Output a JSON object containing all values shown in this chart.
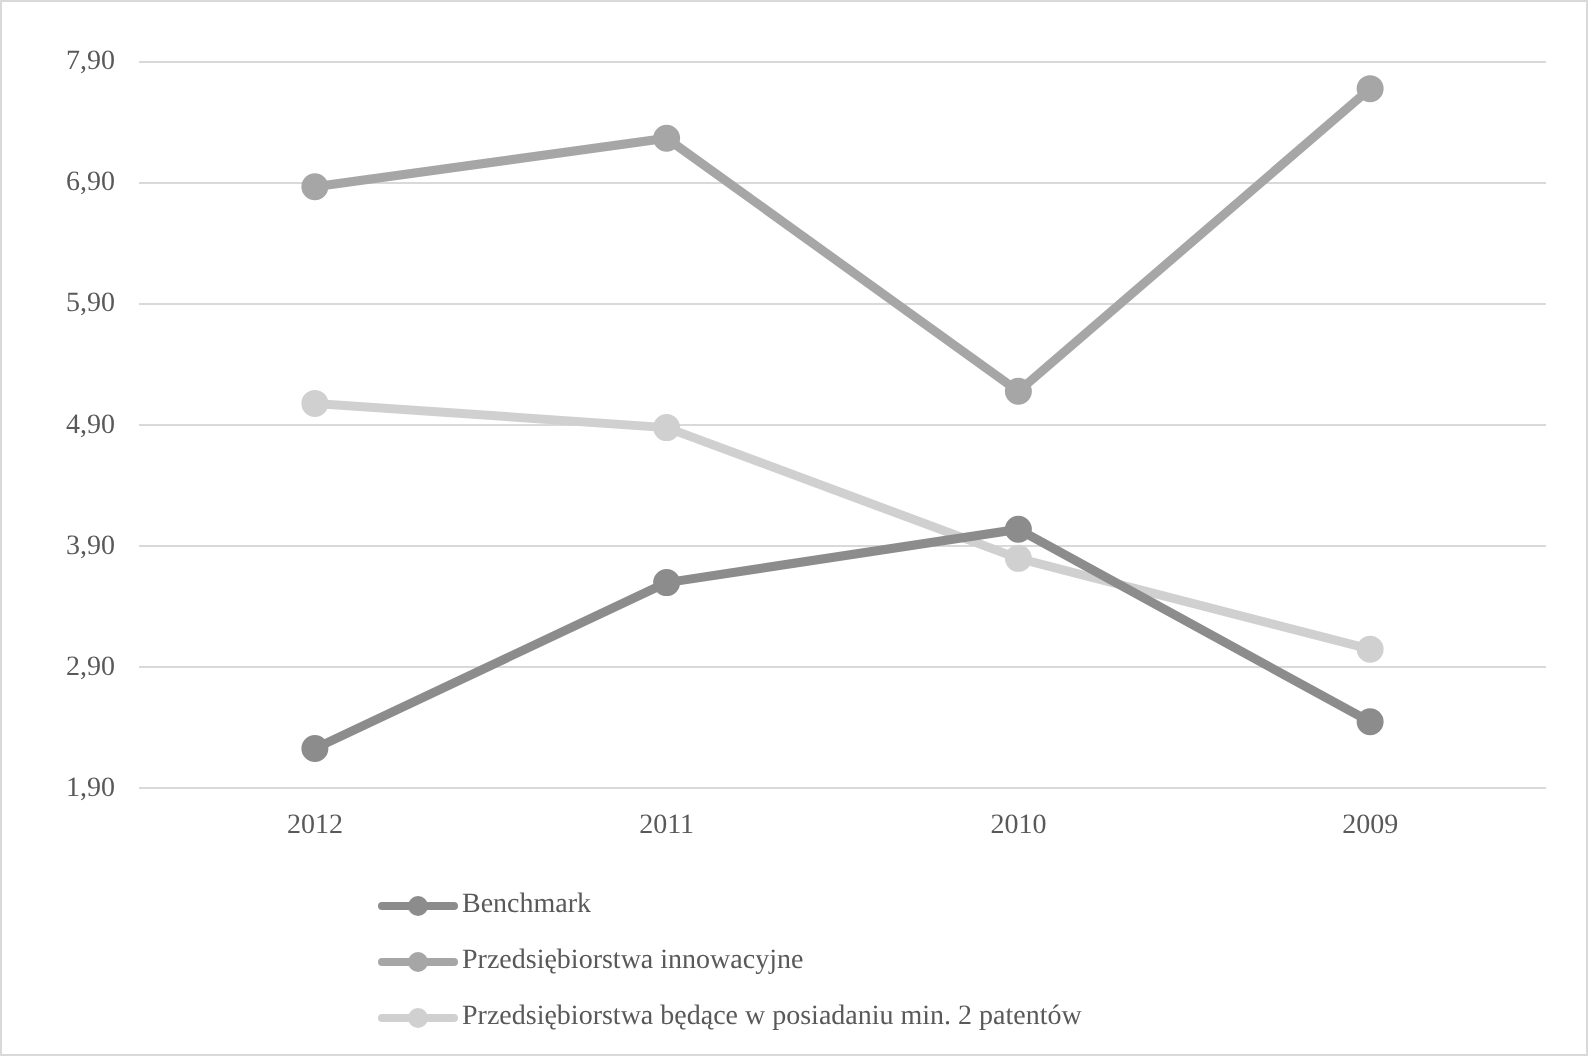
{
  "chart_data": {
    "type": "line",
    "categories": [
      "2012",
      "2011",
      "2010",
      "2009"
    ],
    "series": [
      {
        "name": "Benchmark",
        "color": "#8c8c8c",
        "values": [
          2.23,
          3.6,
          4.04,
          2.45
        ]
      },
      {
        "name": "Przedsiębiorstwa innowacyjne",
        "color": "#a6a6a6",
        "values": [
          6.87,
          7.27,
          5.18,
          7.68
        ]
      },
      {
        "name": "Przedsiębiorstwa będące w posiadaniu min. 2 patentów",
        "color": "#d0d0d0",
        "values": [
          5.08,
          4.88,
          3.8,
          3.05
        ]
      }
    ],
    "ylim": [
      1.9,
      7.9
    ],
    "yticks": [
      {
        "value": 1.9,
        "label": "1,90"
      },
      {
        "value": 2.9,
        "label": "2,90"
      },
      {
        "value": 3.9,
        "label": "3,90"
      },
      {
        "value": 4.9,
        "label": "4,90"
      },
      {
        "value": 5.9,
        "label": "5,90"
      },
      {
        "value": 6.9,
        "label": "6,90"
      },
      {
        "value": 7.9,
        "label": "7,90"
      }
    ],
    "grid": "y",
    "legend": "bottom",
    "marker": "circle",
    "line_style": "solid"
  }
}
